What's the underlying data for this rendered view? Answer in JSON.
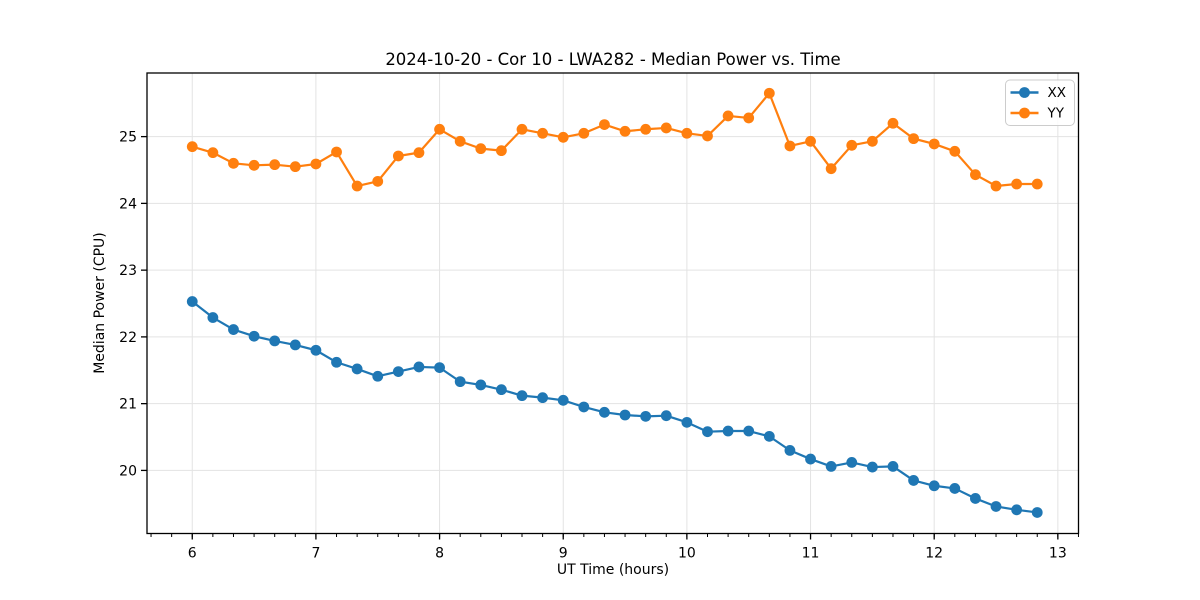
{
  "figure": {
    "title": "2024-10-20 - Cor 10 - LWA282 - Median Power vs. Time",
    "xlabel": "UT Time (hours)",
    "ylabel": "Median Power (CPU)"
  },
  "colors": {
    "series_xx": "#1f77b4",
    "series_yy": "#ff7f0e",
    "grid": "#e3e3e3",
    "spine": "#000000",
    "tick_label": "#000000",
    "legend_border": "#cccccc",
    "legend_bg": "#ffffff"
  },
  "chart_data": {
    "type": "line",
    "title": "2024-10-20 - Cor 10 - LWA282 - Median Power vs. Time",
    "xlabel": "UT Time (hours)",
    "ylabel": "Median Power (CPU)",
    "grid": true,
    "legend_position": "upper right",
    "marker": "o",
    "xlim": [
      5.634,
      13.167
    ],
    "ylim": [
      19.055,
      25.953
    ],
    "x_ticks": [
      6,
      7,
      8,
      9,
      10,
      11,
      12,
      13
    ],
    "y_ticks": [
      20,
      21,
      22,
      23,
      24,
      25
    ],
    "x_minor_step": 0.166667,
    "x": [
      6.0,
      6.1667,
      6.3333,
      6.5,
      6.6667,
      6.8333,
      7.0,
      7.1667,
      7.3333,
      7.5,
      7.6667,
      7.8333,
      8.0,
      8.1667,
      8.3333,
      8.5,
      8.6667,
      8.8333,
      9.0,
      9.1667,
      9.3333,
      9.5,
      9.6667,
      9.8333,
      10.0,
      10.1667,
      10.3333,
      10.5,
      10.6667,
      10.8333,
      11.0,
      11.1667,
      11.3333,
      11.5,
      11.6667,
      11.8333,
      12.0,
      12.1667,
      12.3333,
      12.5,
      12.6667,
      12.8333
    ],
    "series": [
      {
        "name": "XX",
        "color": "#1f77b4",
        "values": [
          22.53,
          22.29,
          22.11,
          22.01,
          21.94,
          21.88,
          21.8,
          21.62,
          21.52,
          21.41,
          21.48,
          21.55,
          21.54,
          21.33,
          21.28,
          21.21,
          21.12,
          21.09,
          21.05,
          20.95,
          20.87,
          20.83,
          20.81,
          20.82,
          20.72,
          20.58,
          20.59,
          20.59,
          20.51,
          20.3,
          20.17,
          20.06,
          20.12,
          20.05,
          20.06,
          19.85,
          19.77,
          19.73,
          19.58,
          19.46,
          19.41,
          19.37
        ]
      },
      {
        "name": "YY",
        "color": "#ff7f0e",
        "values": [
          24.85,
          24.76,
          24.6,
          24.57,
          24.58,
          24.55,
          24.59,
          24.77,
          24.26,
          24.33,
          24.71,
          24.76,
          25.11,
          24.93,
          24.82,
          24.79,
          25.11,
          25.05,
          24.99,
          25.05,
          25.18,
          25.08,
          25.11,
          25.13,
          25.05,
          25.01,
          25.31,
          25.28,
          25.65,
          24.86,
          24.93,
          24.52,
          24.87,
          24.93,
          25.2,
          24.97,
          24.89,
          24.78,
          24.43,
          24.26,
          24.29,
          24.29
        ]
      }
    ]
  }
}
